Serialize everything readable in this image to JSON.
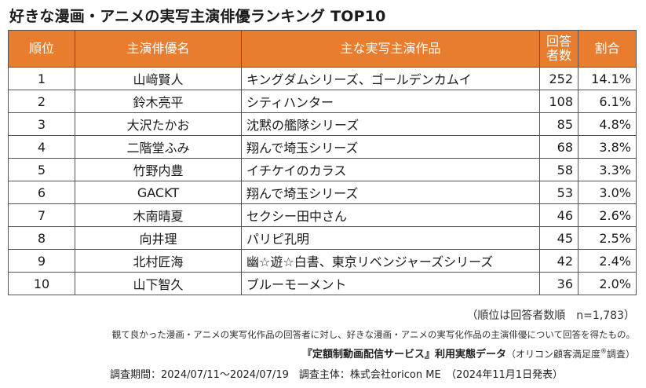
{
  "title": "好きな漫画・アニメの実写主演俳優ランキング TOP10",
  "table": {
    "headers": {
      "rank": "順位",
      "actor": "主演俳優名",
      "work": "主な実写主演作品",
      "count_line1": "回答",
      "count_line2": "者数",
      "share": "割合"
    },
    "rows": [
      {
        "rank": "1",
        "actor": "山﨑賢人",
        "work": "キングダムシリーズ、ゴールデンカムイ",
        "count": "252",
        "share": "14.1%"
      },
      {
        "rank": "2",
        "actor": "鈴木亮平",
        "work": "シティハンター",
        "count": "108",
        "share": "6.1%"
      },
      {
        "rank": "3",
        "actor": "大沢たかお",
        "work": "沈黙の艦隊シリーズ",
        "count": "85",
        "share": "4.8%"
      },
      {
        "rank": "4",
        "actor": "二階堂ふみ",
        "work": "翔んで埼玉シリーズ",
        "count": "68",
        "share": "3.8%"
      },
      {
        "rank": "5",
        "actor": "竹野内豊",
        "work": "イチケイのカラス",
        "count": "58",
        "share": "3.3%"
      },
      {
        "rank": "6",
        "actor": "GACKT",
        "work": "翔んで埼玉シリーズ",
        "count": "53",
        "share": "3.0%"
      },
      {
        "rank": "7",
        "actor": "木南晴夏",
        "work": "セクシー田中さん",
        "count": "46",
        "share": "2.6%"
      },
      {
        "rank": "8",
        "actor": "向井理",
        "work": "パリピ孔明",
        "count": "45",
        "share": "2.5%"
      },
      {
        "rank": "9",
        "actor": "北村匠海",
        "work": "幽☆遊☆白書、東京リベンジャーズシリーズ",
        "count": "42",
        "share": "2.4%"
      },
      {
        "rank": "10",
        "actor": "山下智久",
        "work": "ブルーモーメント",
        "count": "36",
        "share": "2.0%"
      }
    ]
  },
  "notes": {
    "sample": "（順位は回答者数順　n=1,783）",
    "description": "観て良かった漫画・アニメの実写化作品の回答者に対し、好きな漫画・アニメの実写化作品の主演俳優について回答を得たもの。",
    "source_bold": "『定額制動画配信サービス』利用実態データ",
    "source_paren_open": "（オリコン顧客満足度",
    "source_registered": "®",
    "source_paren_close": "調査）",
    "period": "調査期間：2024/07/11～2024/07/19　調査主体：株式会社oricon ME　（2024年11月1日発表）"
  },
  "colors": {
    "header_bg": "#e87d2f",
    "header_text": "#ffffff",
    "border": "#555555"
  }
}
